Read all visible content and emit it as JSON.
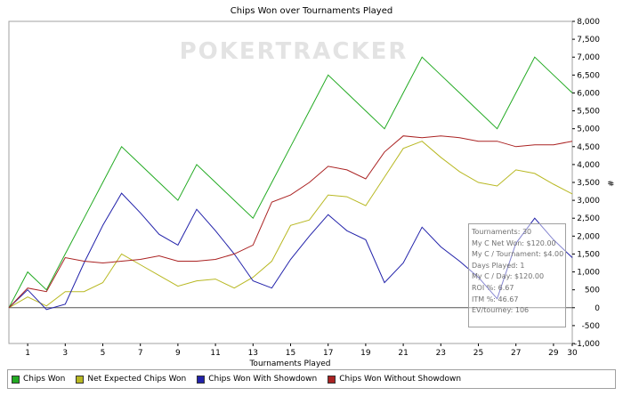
{
  "watermark": "POKERTRACKER",
  "chart_data": {
    "type": "line",
    "title": "Chips Won over Tournaments Played",
    "xlabel": "Tournaments Played",
    "ylabel": "#",
    "xlim": [
      0,
      30
    ],
    "ylim": [
      -1000,
      8000
    ],
    "x_ticks": [
      1,
      3,
      5,
      7,
      9,
      11,
      13,
      15,
      17,
      19,
      21,
      23,
      25,
      27,
      29,
      30
    ],
    "y_ticks": [
      -1000,
      -500,
      0,
      500,
      1000,
      1500,
      2000,
      2500,
      3000,
      3500,
      4000,
      4500,
      5000,
      5500,
      6000,
      6500,
      7000,
      7500,
      8000
    ],
    "x_tick_labels": [
      "1",
      "3",
      "5",
      "7",
      "9",
      "11",
      "13",
      "15",
      "17",
      "19",
      "21",
      "23",
      "25",
      "27",
      "29",
      "30"
    ],
    "y_tick_labels": [
      "-1,000",
      "-500",
      "0",
      "500",
      "1,000",
      "1,500",
      "2,000",
      "2,500",
      "3,000",
      "3,500",
      "4,000",
      "4,500",
      "5,000",
      "5,500",
      "6,000",
      "6,500",
      "7,000",
      "7,500",
      "8,000"
    ],
    "grid": false,
    "legend_position": "bottom",
    "x": [
      0,
      1,
      2,
      3,
      4,
      5,
      6,
      7,
      8,
      9,
      10,
      11,
      12,
      13,
      14,
      15,
      16,
      17,
      18,
      19,
      20,
      21,
      22,
      23,
      24,
      25,
      26,
      27,
      28,
      29,
      30
    ],
    "series": [
      {
        "name": "Chips Won",
        "color": "#22aa22",
        "values": [
          0,
          1000,
          500,
          1500,
          2500,
          3500,
          4500,
          4000,
          3500,
          3000,
          4000,
          3500,
          3000,
          2500,
          3500,
          4500,
          5500,
          6500,
          6000,
          5500,
          5000,
          6000,
          7000,
          6500,
          6000,
          5500,
          5000,
          6000,
          7000,
          6500,
          6000
        ]
      },
      {
        "name": "Net Expected Chips Won",
        "color": "#b8b822",
        "values": [
          0,
          300,
          50,
          450,
          450,
          700,
          1500,
          1200,
          900,
          600,
          750,
          800,
          550,
          850,
          1300,
          2300,
          2450,
          3150,
          3100,
          2850,
          3650,
          4450,
          4650,
          4200,
          3800,
          3500,
          3400,
          3850,
          3750,
          3450,
          3180
        ]
      },
      {
        "name": "Chips Won With Showdown",
        "color": "#2222aa",
        "values": [
          0,
          500,
          -50,
          100,
          1250,
          2300,
          3200,
          2650,
          2050,
          1750,
          2750,
          2150,
          1500,
          750,
          550,
          1350,
          2000,
          2600,
          2150,
          1900,
          700,
          1250,
          2250,
          1700,
          1300,
          850,
          250,
          1800,
          2500,
          1900,
          1400
        ]
      },
      {
        "name": "Chips Won Without Showdown",
        "color": "#aa2222",
        "values": [
          0,
          550,
          450,
          1400,
          1300,
          1250,
          1300,
          1350,
          1450,
          1300,
          1300,
          1350,
          1500,
          1750,
          2950,
          3150,
          3500,
          3950,
          3850,
          3600,
          4350,
          4800,
          4750,
          4800,
          4750,
          4650,
          4650,
          4500,
          4550,
          4550,
          4650
        ]
      }
    ]
  },
  "stats": [
    "Tournaments: 30",
    "My C Net Won: $120.00",
    "My C / Tournament: $4.00",
    "Days Played: 1",
    "My C / Day: $120.00",
    "ROI %: 6.67",
    "ITM %: 46.67",
    "EV/tourney: 106"
  ]
}
